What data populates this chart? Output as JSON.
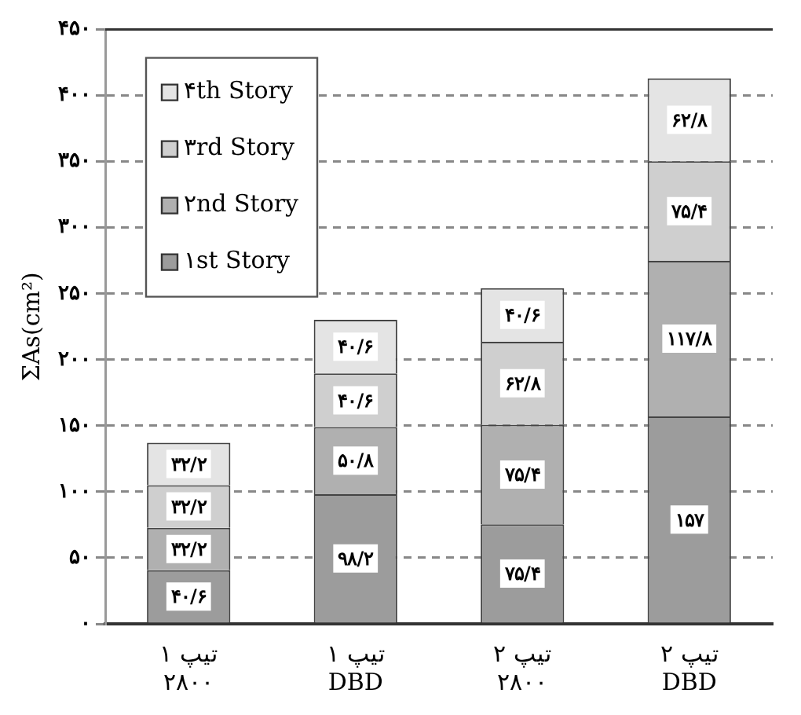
{
  "chart_data": {
    "type": "bar",
    "stacked": true,
    "ylabel": "ΣAs(cm²)",
    "categories": [
      "تیپ ۱\n۲۸۰۰",
      "تیپ ۱\nDBD",
      "تیپ ۲\n۲۸۰۰",
      "تیپ ۲\nDBD"
    ],
    "series": [
      {
        "name": "۱st Story",
        "color": "#9c9c9c",
        "values": [
          40.6,
          98.2,
          75.4,
          157
        ],
        "value_labels": [
          "۴۰/۶",
          "۹۸/۲",
          "۷۵/۴",
          "۱۵۷"
        ]
      },
      {
        "name": "۲nd Story",
        "color": "#b0b0b0",
        "values": [
          32.2,
          50.8,
          75.4,
          117.8
        ],
        "value_labels": [
          "۳۲/۲",
          "۵۰/۸",
          "۷۵/۴",
          "۱۱۷/۸"
        ]
      },
      {
        "name": "۳rd Story",
        "color": "#cfcfcf",
        "values": [
          32.2,
          40.6,
          62.8,
          75.4
        ],
        "value_labels": [
          "۳۲/۲",
          "۴۰/۶",
          "۶۲/۸",
          "۷۵/۴"
        ]
      },
      {
        "name": "۴th Story",
        "color": "#e4e4e4",
        "values": [
          32.2,
          40.6,
          40.6,
          62.8
        ],
        "value_labels": [
          "۳۲/۲",
          "۴۰/۶",
          "۴۰/۶",
          "۶۲/۸"
        ]
      }
    ],
    "ylim": [
      0,
      450
    ],
    "yticks": [
      {
        "value": 0,
        "label": "۰"
      },
      {
        "value": 50,
        "label": "۵۰"
      },
      {
        "value": 100,
        "label": "۱۰۰"
      },
      {
        "value": 150,
        "label": "۱۵۰"
      },
      {
        "value": 200,
        "label": "۲۰۰"
      },
      {
        "value": 250,
        "label": "۲۵۰"
      },
      {
        "value": 300,
        "label": "۳۰۰"
      },
      {
        "value": 350,
        "label": "۳۵۰"
      },
      {
        "value": 400,
        "label": "۴۰۰"
      },
      {
        "value": 450,
        "label": "۴۵۰"
      }
    ],
    "grid": "y",
    "line_style": "dashed",
    "legend": "top left"
  }
}
